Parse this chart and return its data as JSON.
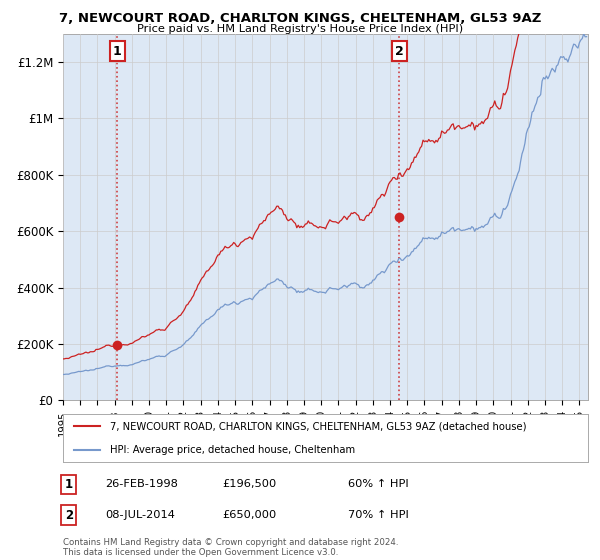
{
  "title": "7, NEWCOURT ROAD, CHARLTON KINGS, CHELTENHAM, GL53 9AZ",
  "subtitle": "Price paid vs. HM Land Registry's House Price Index (HPI)",
  "hpi_color": "#7799cc",
  "hpi_fill_color": "#dde8f5",
  "price_color": "#cc2222",
  "sale1_date_num": 1998.15,
  "sale1_price": 196500,
  "sale1_label": "1",
  "sale1_date_str": "26-FEB-1998",
  "sale1_hpi_pct": "60% ↑ HPI",
  "sale2_date_num": 2014.52,
  "sale2_price": 650000,
  "sale2_label": "2",
  "sale2_date_str": "08-JUL-2014",
  "sale2_hpi_pct": "70% ↑ HPI",
  "legend_line1": "7, NEWCOURT ROAD, CHARLTON KINGS, CHELTENHAM, GL53 9AZ (detached house)",
  "legend_line2": "HPI: Average price, detached house, Cheltenham",
  "footnote": "Contains HM Land Registry data © Crown copyright and database right 2024.\nThis data is licensed under the Open Government Licence v3.0.",
  "background_color": "#ffffff",
  "grid_color": "#cccccc",
  "yticks": [
    0,
    200000,
    400000,
    600000,
    800000,
    1000000,
    1200000
  ],
  "ytick_labels": [
    "£0",
    "£200K",
    "£400K",
    "£600K",
    "£800K",
    "£1M",
    "£1.2M"
  ],
  "xlim_start": 1995,
  "xlim_end": 2025.5
}
